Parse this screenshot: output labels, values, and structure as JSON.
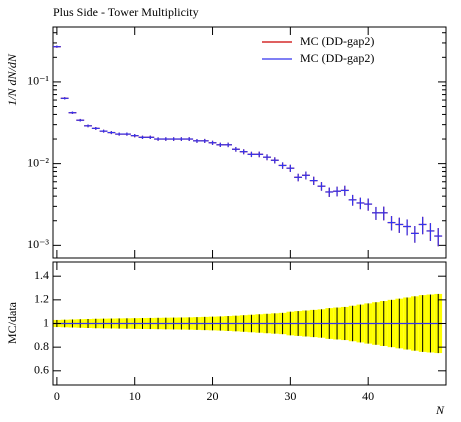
{
  "chart_data": {
    "type": "line",
    "title": "Plus Side - Tower Multiplicity",
    "ylabel": "1/N dN/dN",
    "xlabel": "N",
    "log_y": true,
    "legend": "upper right",
    "x": [
      0,
      1,
      2,
      3,
      4,
      5,
      6,
      7,
      8,
      9,
      10,
      11,
      12,
      13,
      14,
      15,
      16,
      17,
      18,
      19,
      20,
      21,
      22,
      23,
      24,
      25,
      26,
      27,
      28,
      29,
      30,
      31,
      32,
      33,
      34,
      35,
      36,
      37,
      38,
      39,
      40,
      41,
      42,
      43,
      44,
      45,
      46,
      47,
      48,
      49
    ],
    "xlim": [
      -0.5,
      50
    ],
    "xticks": [
      0,
      10,
      20,
      30,
      40
    ],
    "ylim": [
      0.0007,
      0.47
    ],
    "yticks": [
      {
        "value": 0.001,
        "label": "10⁻³"
      },
      {
        "value": 0.01,
        "label": "10⁻²"
      },
      {
        "value": 0.1,
        "label": "10⁻¹"
      }
    ],
    "series": [
      {
        "name": "MC (DD-gap2)",
        "color": "#cc0000",
        "values": [
          0.27,
          0.063,
          0.042,
          0.034,
          0.029,
          0.027,
          0.025,
          0.024,
          0.023,
          0.023,
          0.022,
          0.021,
          0.021,
          0.02,
          0.02,
          0.02,
          0.02,
          0.02,
          0.019,
          0.019,
          0.018,
          0.017,
          0.017,
          0.015,
          0.014,
          0.013,
          0.013,
          0.012,
          0.011,
          0.0095,
          0.0088,
          0.0068,
          0.0072,
          0.0062,
          0.0053,
          0.0045,
          0.0046,
          0.0047,
          0.0036,
          0.0033,
          0.0032,
          0.0025,
          0.0025,
          0.0019,
          0.0018,
          0.0017,
          0.0014,
          0.0018,
          0.0015,
          0.0013
        ]
      },
      {
        "name": "MC (DD-gap2)",
        "color": "#3333ee",
        "values": [
          0.27,
          0.063,
          0.042,
          0.034,
          0.029,
          0.027,
          0.025,
          0.024,
          0.023,
          0.023,
          0.022,
          0.021,
          0.021,
          0.02,
          0.02,
          0.02,
          0.02,
          0.02,
          0.019,
          0.019,
          0.018,
          0.017,
          0.017,
          0.015,
          0.014,
          0.013,
          0.013,
          0.012,
          0.011,
          0.0095,
          0.0088,
          0.0068,
          0.0072,
          0.0062,
          0.0053,
          0.0045,
          0.0046,
          0.0047,
          0.0036,
          0.0033,
          0.0032,
          0.0025,
          0.0025,
          0.0019,
          0.0018,
          0.0017,
          0.0014,
          0.0018,
          0.0015,
          0.0013
        ]
      }
    ],
    "ratio": {
      "ylabel": "MC/data",
      "ylim": [
        0.48,
        1.52
      ],
      "yticks": [
        0.6,
        0.8,
        1,
        1.2,
        1.4
      ],
      "band_color": "#ffff00",
      "values": [
        1,
        1,
        1,
        1,
        1,
        1,
        1,
        1,
        1,
        1,
        1,
        1,
        1,
        1,
        1,
        1,
        1,
        1,
        1,
        1,
        1,
        1,
        1,
        1,
        1,
        1,
        1,
        1,
        1,
        1,
        1,
        1,
        1,
        1,
        1,
        1,
        1,
        1,
        1,
        1,
        1,
        1,
        1,
        1,
        1,
        1,
        1,
        1,
        1,
        1
      ],
      "band_errors": [
        0.03,
        0.032,
        0.034,
        0.036,
        0.038,
        0.04,
        0.041,
        0.042,
        0.043,
        0.044,
        0.045,
        0.046,
        0.047,
        0.048,
        0.049,
        0.05,
        0.051,
        0.052,
        0.054,
        0.056,
        0.058,
        0.06,
        0.063,
        0.066,
        0.07,
        0.074,
        0.078,
        0.082,
        0.086,
        0.09,
        0.1,
        0.105,
        0.11,
        0.115,
        0.12,
        0.13,
        0.135,
        0.14,
        0.15,
        0.16,
        0.17,
        0.18,
        0.19,
        0.2,
        0.21,
        0.22,
        0.23,
        0.24,
        0.245,
        0.25
      ]
    }
  }
}
